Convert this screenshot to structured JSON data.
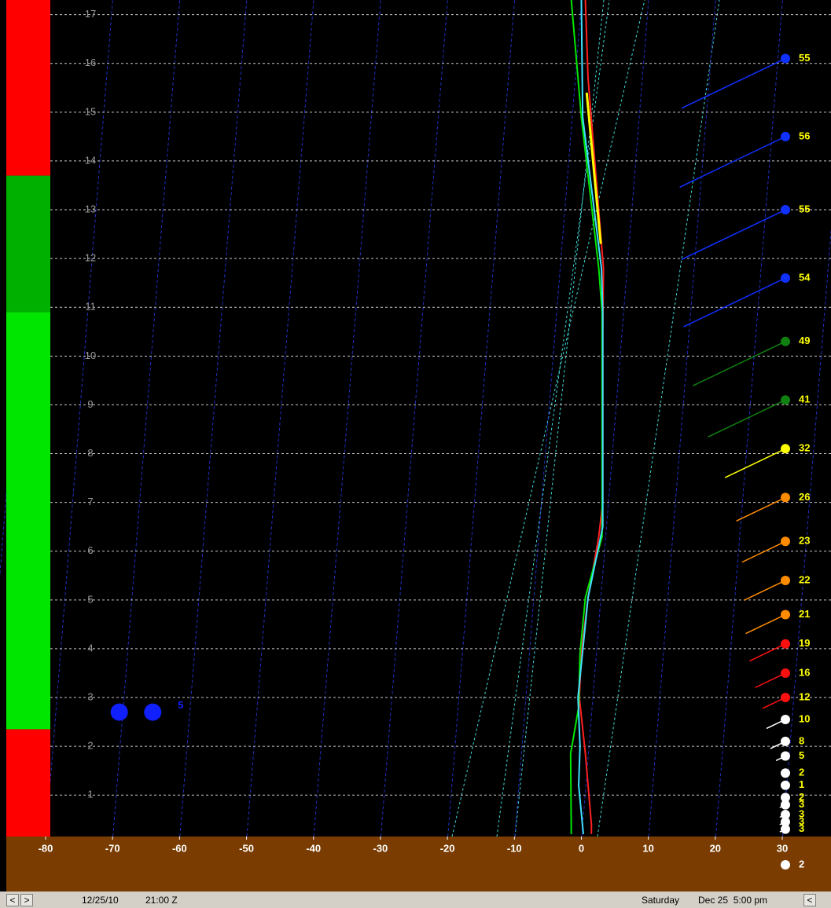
{
  "chart_data": {
    "type": "sounding",
    "xlim": [
      -80,
      30
    ],
    "ylim": [
      0.15,
      17.3
    ],
    "xticks": [
      -80,
      -70,
      -60,
      -50,
      -40,
      -30,
      -20,
      -10,
      0,
      10,
      20,
      30
    ],
    "yticks": [
      1,
      2,
      3,
      4,
      5,
      6,
      7,
      8,
      9,
      10,
      11,
      12,
      13,
      14,
      15,
      16,
      17
    ],
    "grid": true,
    "bands": [
      {
        "from": 0.15,
        "to": 2.35,
        "color": "#ff0000"
      },
      {
        "from": 2.35,
        "to": 10.9,
        "color": "#00e600"
      },
      {
        "from": 10.9,
        "to": 13.7,
        "color": "#00b000"
      },
      {
        "from": 13.7,
        "to": 17.3,
        "color": "#ff0000"
      }
    ],
    "series": [
      {
        "color": "#ff2020",
        "x": [
          1.5,
          1.5,
          0.6,
          -0.3,
          0.0,
          1.0,
          2.6,
          3.2,
          3.2,
          3.3,
          1.0,
          0.6
        ],
        "y": [
          0.2,
          0.4,
          1.85,
          3.0,
          3.9,
          5.05,
          6.3,
          7.0,
          10.5,
          11.8,
          15.7,
          17.3
        ]
      },
      {
        "color": "#00e600",
        "x": [
          -1.5,
          -1.6,
          -0.4,
          -0.2,
          0.6,
          3.1,
          3.1,
          2.6,
          0.0,
          -1.5
        ],
        "y": [
          0.2,
          1.85,
          2.8,
          3.9,
          5.05,
          6.3,
          10.9,
          11.8,
          14.9,
          17.3
        ]
      },
      {
        "color": "#40e0ff",
        "x": [
          0.3,
          -0.4,
          -0.2,
          -0.5,
          1.0,
          3.2,
          3.2,
          3.0,
          0.2,
          0.0
        ],
        "y": [
          0.2,
          1.2,
          2.0,
          3.0,
          5.05,
          6.5,
          10.9,
          11.8,
          14.9,
          17.3
        ]
      },
      {
        "color": "#ffff00",
        "x": [
          0.8,
          2.9
        ],
        "y": [
          15.4,
          12.3
        ]
      }
    ],
    "markers": {
      "x": [
        -69,
        -64
      ],
      "y": 2.7,
      "label": "5"
    },
    "winds": {
      "heights": [
        16.1,
        14.5,
        13.0,
        11.6,
        10.3,
        9.1,
        8.1,
        7.1,
        6.2,
        5.4,
        4.7,
        4.1,
        3.5,
        3.0,
        2.55,
        2.1,
        1.8,
        1.45,
        1.2,
        0.95,
        0.8,
        0.6,
        0.45,
        0.3
      ],
      "speeds": [
        55,
        56,
        55,
        54,
        49,
        41,
        32,
        26,
        23,
        22,
        21,
        19,
        16,
        12,
        10,
        8,
        5,
        2,
        1,
        2,
        3,
        3,
        3,
        3
      ],
      "colors": [
        "#1030ff",
        "#1030ff",
        "#1030ff",
        "#1030ff",
        "#108010",
        "#108010",
        "#ffff00",
        "#ff8c00",
        "#ff8c00",
        "#ff8c00",
        "#ff8c00",
        "#ff1010",
        "#ff1010",
        "#ff1010",
        "#ffffff",
        "#ffffff",
        "#ffffff",
        "#ffffff",
        "#ffffff",
        "#ffffff",
        "#ffffff",
        "#ffffff",
        "#ffffff",
        "#ffffff"
      ]
    },
    "surface_wind": {
      "speed": 2,
      "color": "#ffffff"
    }
  },
  "status_bar": {
    "nav_left": "<",
    "nav_right": ">",
    "date": "12/25/10",
    "time": "21:00 Z",
    "day": "Saturday",
    "local": "Dec 25  5:00 pm",
    "nav_end": "<"
  }
}
